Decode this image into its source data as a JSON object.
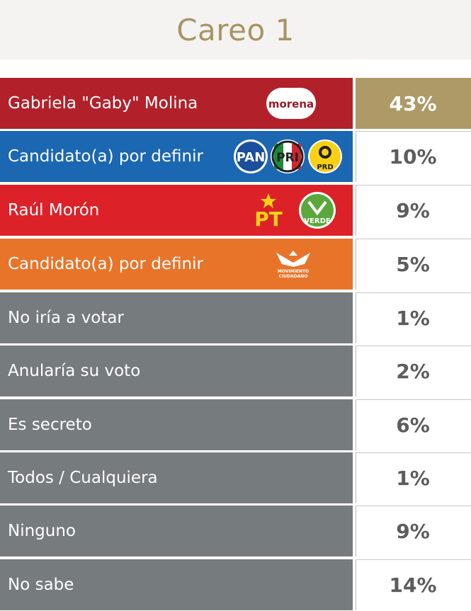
{
  "title": "Careo 1",
  "colors": {
    "gold": "#ad9a67",
    "morena": "#b2212a",
    "pan_pri_prd": "#1b67b2",
    "pt_verde": "#dd2128",
    "mc": "#e8742a",
    "gray": "#767b7d",
    "value_text": "#5d5d5d"
  },
  "rows": [
    {
      "label": "Gabriela \"Gaby\" Molina",
      "value": "43%",
      "icons": [
        "morena-logo"
      ]
    },
    {
      "label": "Candidato(a) por definir",
      "value": "10%",
      "icons": [
        "pan-logo",
        "pri-logo",
        "prd-logo"
      ]
    },
    {
      "label": "Raúl Morón",
      "value": "9%",
      "icons": [
        "pt-logo",
        "verde-logo"
      ]
    },
    {
      "label": "Candidato(a) por definir",
      "value": "5%",
      "icons": [
        "movimiento-ciudadano-logo"
      ]
    },
    {
      "label": "No iría a votar",
      "value": "1%"
    },
    {
      "label": "Anularía su voto",
      "value": "2%"
    },
    {
      "label": "Es secreto",
      "value": "6%"
    },
    {
      "label": "Todos / Cualquiera",
      "value": "1%"
    },
    {
      "label": "Ninguno",
      "value": "9%"
    },
    {
      "label": "No sabe",
      "value": "14%"
    }
  ],
  "logos": {
    "morena": "morena",
    "pan": "PAN",
    "pri": "PRI",
    "prd": "PRD",
    "pt": "PT",
    "verde": "VERDE",
    "mc_line1": "MOVIMIENTO",
    "mc_line2": "CIUDADANO"
  },
  "chart_data": {
    "type": "table",
    "title": "Careo 1",
    "categories": [
      "Gabriela \"Gaby\" Molina",
      "Candidato(a) por definir",
      "Raúl Morón",
      "Candidato(a) por definir",
      "No iría a votar",
      "Anularía su voto",
      "Es secreto",
      "Todos / Cualquiera",
      "Ninguno",
      "No sabe"
    ],
    "values": [
      43,
      10,
      9,
      5,
      1,
      2,
      6,
      1,
      9,
      14
    ]
  }
}
